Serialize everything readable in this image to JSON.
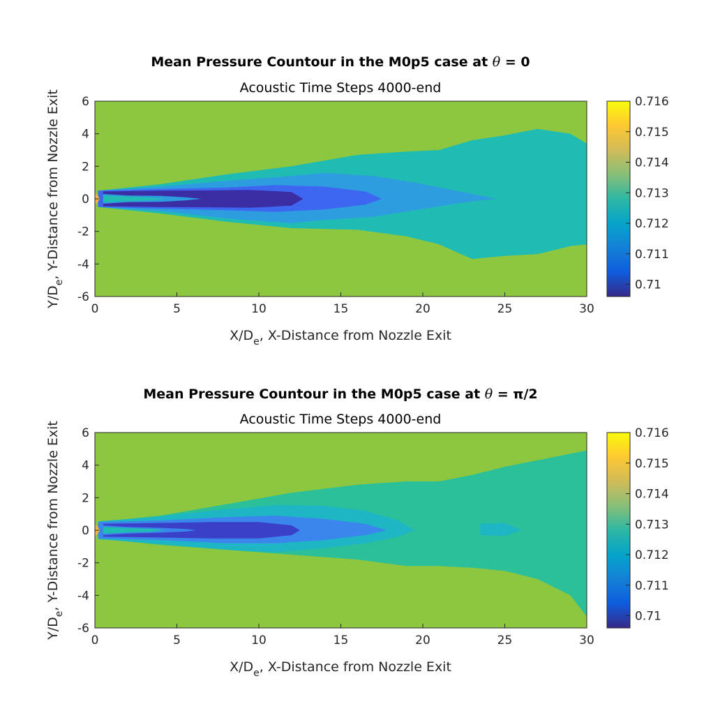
{
  "chart_data": [
    {
      "type": "heatmap",
      "title": "Mean Pressure Countour in the M0p5 case at",
      "title_symbol": "θ",
      "title_value": "= 0",
      "subtitle": "Acoustic Time Steps 4000-end",
      "xlabel": "X/D",
      "xlabel_sub": "e",
      "xlabel_rest": ", X-Distance from Nozzle Exit",
      "ylabel": "Y/D",
      "ylabel_sub": "e",
      "ylabel_rest": ", Y-Distance from Nozzle Exit",
      "xlim": [
        0,
        30
      ],
      "ylim": [
        -6,
        6
      ],
      "xticks": [
        "0",
        "5",
        "10",
        "15",
        "20",
        "25",
        "30"
      ],
      "yticks": [
        "-6",
        "-4",
        "-2",
        "0",
        "2",
        "4",
        "6"
      ],
      "colorbar": {
        "range": [
          0.7096,
          0.716
        ],
        "ticks": [
          "0.71",
          "0.711",
          "0.712",
          "0.713",
          "0.714",
          "0.715",
          "0.716"
        ]
      },
      "regions": [
        {
          "level": 0.7138,
          "color": "#8DC63F"
        },
        {
          "level": 0.7127,
          "color": "#20BCB4",
          "x": [
            0.2,
            4,
            8,
            12,
            16,
            19,
            21,
            23,
            25,
            27,
            29,
            30
          ],
          "upper": [
            0.5,
            0.9,
            1.5,
            2.0,
            2.7,
            2.9,
            3.0,
            3.6,
            3.9,
            4.3,
            4.0,
            3.4
          ],
          "lower": [
            -0.5,
            -0.9,
            -1.4,
            -1.8,
            -1.9,
            -2.3,
            -2.8,
            -3.7,
            -3.5,
            -3.4,
            -2.9,
            -2.8
          ]
        },
        {
          "level": 0.7118,
          "color": "#2E9DE0",
          "x": [
            0.2,
            4,
            8,
            12,
            14,
            17,
            19.5,
            22,
            23.5,
            24.5
          ],
          "upper": [
            0.5,
            0.75,
            1.1,
            1.4,
            1.6,
            1.4,
            1.0,
            0.5,
            0.2,
            0.0
          ],
          "lower": [
            -0.5,
            -0.75,
            -1.2,
            -1.5,
            -1.3,
            -1.1,
            -0.7,
            -0.3,
            -0.1,
            0.0
          ]
        },
        {
          "level": 0.7108,
          "color": "#3D67F0",
          "x": [
            0.2,
            4,
            8,
            11,
            14,
            16.5,
            17.5
          ],
          "upper": [
            0.5,
            0.6,
            0.7,
            0.85,
            0.75,
            0.45,
            0.0
          ],
          "lower": [
            -0.5,
            -0.6,
            -0.7,
            -0.8,
            -0.65,
            -0.35,
            0.0
          ]
        },
        {
          "level": 0.7099,
          "color": "#3B2EA4",
          "x": [
            0.5,
            4,
            7,
            9.5,
            12,
            12.7
          ],
          "upper": [
            0.45,
            0.5,
            0.52,
            0.55,
            0.42,
            0.0
          ],
          "lower": [
            -0.45,
            -0.5,
            -0.52,
            -0.55,
            -0.42,
            0.0
          ]
        },
        {
          "level": 0.7117,
          "color": "#2E9DE0",
          "x": [
            0.5,
            2,
            4,
            5.5,
            6.5
          ],
          "upper": [
            0.3,
            0.2,
            0.18,
            0.1,
            0.0
          ],
          "lower": [
            -0.3,
            -0.2,
            -0.18,
            -0.1,
            0.0
          ]
        },
        {
          "level": 0.7127,
          "color": "#20BCB4",
          "x": [
            0.5,
            2,
            3.5,
            4.3
          ],
          "upper": [
            0.2,
            0.14,
            0.08,
            0.0
          ],
          "lower": [
            -0.2,
            -0.14,
            -0.08,
            0.0
          ]
        },
        {
          "level": 0.7152,
          "color": "#F5B43C",
          "x": [
            0,
            0.15,
            0.3
          ],
          "upper": [
            0.35,
            0.25,
            0.0
          ],
          "lower": [
            -0.35,
            -0.25,
            0.0
          ]
        }
      ]
    },
    {
      "type": "heatmap",
      "title": "Mean Pressure Countour in the M0p5 case at",
      "title_symbol": "θ",
      "title_value": "= π/2",
      "subtitle": "Acoustic Time Steps 4000-end",
      "xlabel": "X/D",
      "xlabel_sub": "e",
      "xlabel_rest": ", X-Distance from Nozzle Exit",
      "ylabel": "Y/D",
      "ylabel_sub": "e",
      "ylabel_rest": ", Y-Distance from Nozzle Exit",
      "xlim": [
        0,
        30
      ],
      "ylim": [
        -6,
        6
      ],
      "xticks": [
        "0",
        "5",
        "10",
        "15",
        "20",
        "25",
        "30"
      ],
      "yticks": [
        "-6",
        "-4",
        "-2",
        "0",
        "2",
        "4",
        "6"
      ],
      "colorbar": {
        "range": [
          0.7096,
          0.716
        ],
        "ticks": [
          "0.71",
          "0.711",
          "0.712",
          "0.713",
          "0.714",
          "0.715",
          "0.716"
        ]
      },
      "regions": [
        {
          "level": 0.7138,
          "color": "#8DC63F"
        },
        {
          "level": 0.7128,
          "color": "#2CC09A",
          "x": [
            0.2,
            4,
            8,
            12,
            16,
            19,
            21,
            23,
            25,
            27,
            29,
            30
          ],
          "upper": [
            0.5,
            0.9,
            1.6,
            2.3,
            2.8,
            3.0,
            3.0,
            3.4,
            3.9,
            4.3,
            4.7,
            4.9
          ],
          "lower": [
            -0.5,
            -0.9,
            -1.2,
            -1.5,
            -1.8,
            -2.2,
            -2.2,
            -2.3,
            -2.5,
            -3.0,
            -4.0,
            -5.3
          ]
        },
        {
          "level": 0.7124,
          "color": "#1EB6C4",
          "x": [
            0.2,
            4,
            8,
            11,
            14,
            16.5,
            18.5,
            19.5
          ],
          "upper": [
            0.55,
            0.85,
            1.3,
            1.55,
            1.5,
            1.2,
            0.6,
            0.0
          ],
          "lower": [
            -0.55,
            -0.85,
            -1.2,
            -1.35,
            -1.1,
            -0.8,
            -0.4,
            0.0
          ]
        },
        {
          "level": 0.7123,
          "color": "#1EB6C4",
          "x": [
            23.5,
            25,
            26
          ],
          "upper": [
            0.4,
            0.45,
            0.0
          ],
          "lower": [
            -0.3,
            -0.35,
            0.0
          ]
        },
        {
          "level": 0.7114,
          "color": "#3A86EC",
          "x": [
            0.2,
            4,
            8,
            11,
            14,
            16.5,
            17.8
          ],
          "upper": [
            0.5,
            0.6,
            0.8,
            0.9,
            0.7,
            0.4,
            0.0
          ],
          "lower": [
            -0.5,
            -0.6,
            -0.8,
            -0.8,
            -0.6,
            -0.3,
            0.0
          ]
        },
        {
          "level": 0.7102,
          "color": "#3A40C8",
          "x": [
            0.5,
            4,
            7,
            10,
            12,
            12.5
          ],
          "upper": [
            0.4,
            0.45,
            0.5,
            0.5,
            0.3,
            0.0
          ],
          "lower": [
            -0.4,
            -0.45,
            -0.5,
            -0.5,
            -0.3,
            0.0
          ]
        },
        {
          "level": 0.7115,
          "color": "#3A86EC",
          "x": [
            0.5,
            2,
            4,
            5.5,
            6.2
          ],
          "upper": [
            0.3,
            0.2,
            0.15,
            0.08,
            0.0
          ],
          "lower": [
            -0.3,
            -0.2,
            -0.15,
            -0.08,
            0.0
          ]
        },
        {
          "level": 0.7127,
          "color": "#20BCB4",
          "x": [
            0.5,
            2,
            3.5,
            4.3
          ],
          "upper": [
            0.2,
            0.14,
            0.08,
            0.0
          ],
          "lower": [
            -0.2,
            -0.14,
            -0.08,
            0.0
          ]
        },
        {
          "level": 0.7152,
          "color": "#F5B43C",
          "x": [
            0,
            0.15,
            0.3
          ],
          "upper": [
            0.35,
            0.25,
            0.0
          ],
          "lower": [
            -0.35,
            -0.25,
            0.0
          ]
        }
      ]
    }
  ]
}
